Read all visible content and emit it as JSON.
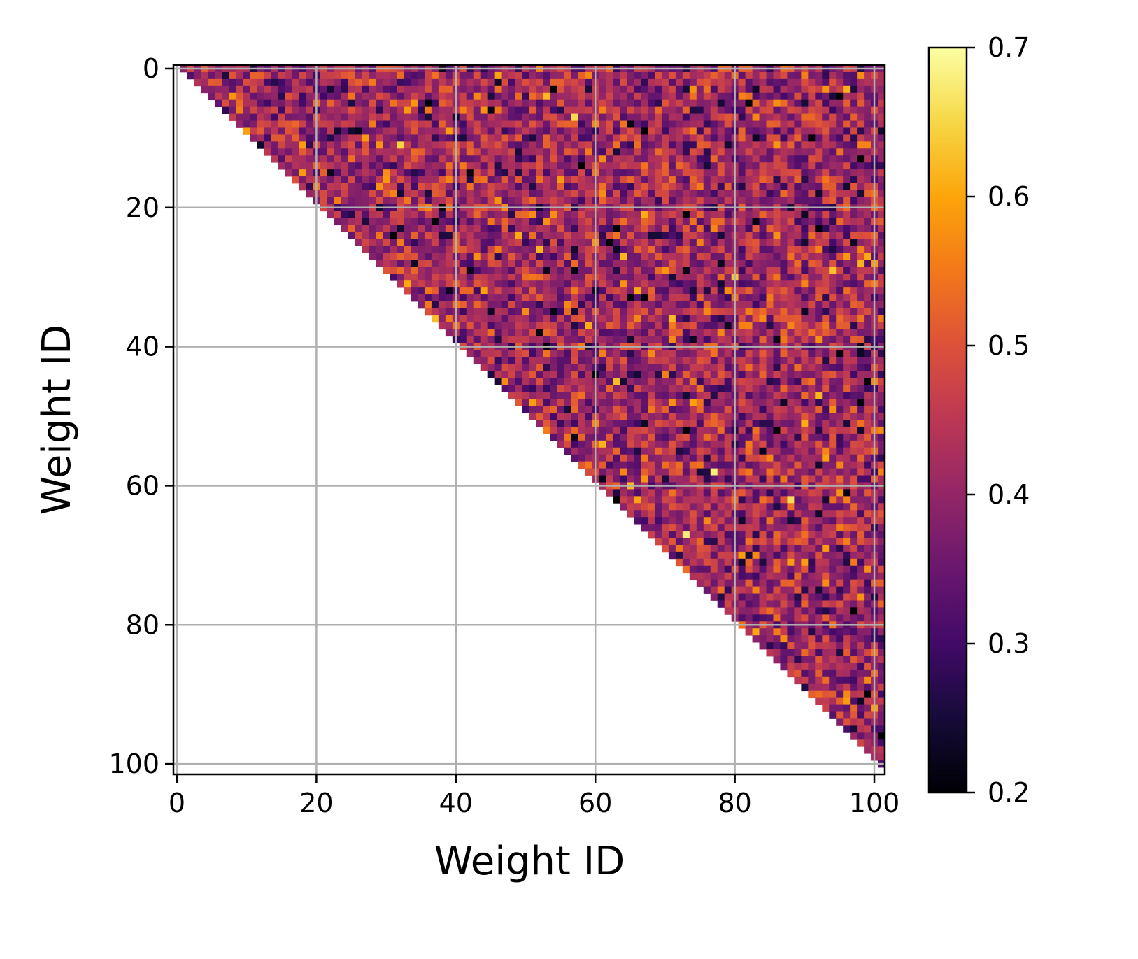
{
  "chart_data": {
    "type": "heatmap",
    "title": "",
    "xlabel": "Weight ID",
    "ylabel": "Weight ID",
    "matrix_size": 102,
    "shape": "upper-triangular",
    "xlim": [
      -0.5,
      101.5
    ],
    "ylim": [
      101.5,
      -0.5
    ],
    "xticks": [
      "0",
      "20",
      "40",
      "60",
      "80",
      "100"
    ],
    "yticks": [
      "0",
      "20",
      "40",
      "60",
      "80",
      "100"
    ],
    "xtick_values": [
      0,
      20,
      40,
      60,
      80,
      100
    ],
    "ytick_values": [
      0,
      20,
      40,
      60,
      80,
      100
    ],
    "grid": true,
    "grid_color": "#b0b0b0",
    "colormap": "inferno",
    "value_range": [
      0.2,
      0.7
    ],
    "value_distribution": {
      "mean": 0.41,
      "std": 0.075
    },
    "colorbar": {
      "ticks": [
        "0.2",
        "0.3",
        "0.4",
        "0.5",
        "0.6",
        "0.7"
      ],
      "tick_values": [
        0.2,
        0.3,
        0.4,
        0.5,
        0.6,
        0.7
      ],
      "placement": "right"
    }
  }
}
